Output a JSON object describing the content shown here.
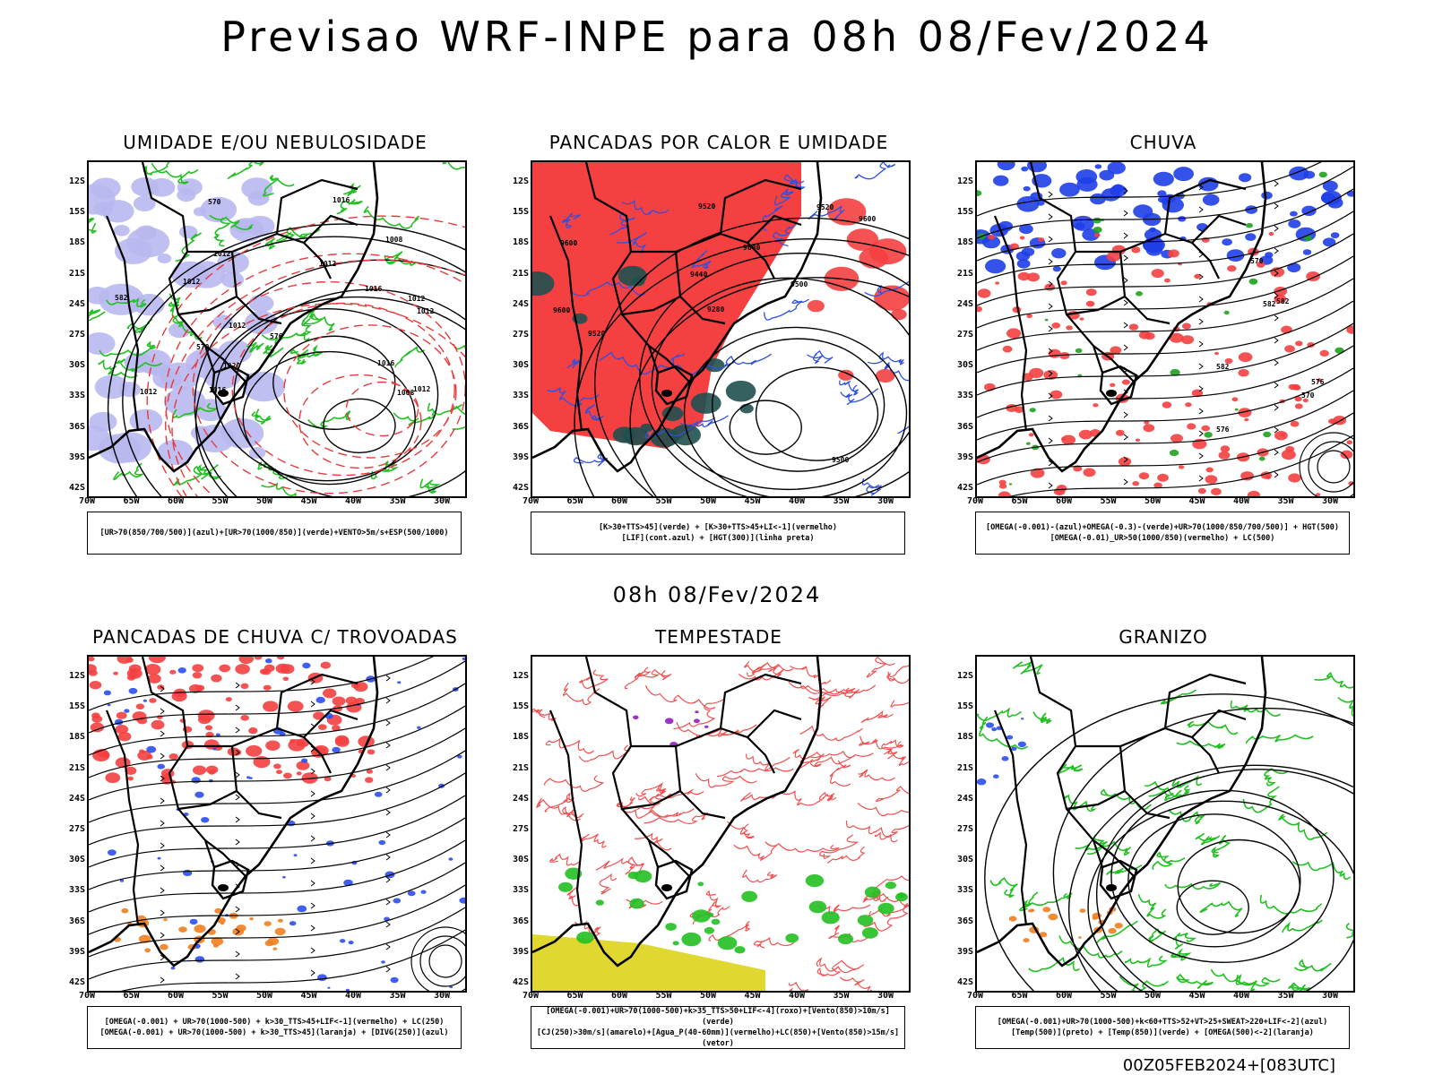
{
  "main_title": "Previsao WRF-INPE  para 08h 08/Fev/2024",
  "mid_title": "08h 08/Fev/2024",
  "footer": "00Z05FEB2024+[083UTC]",
  "axes": {
    "lat": [
      "12S",
      "15S",
      "18S",
      "21S",
      "24S",
      "27S",
      "30S",
      "33S",
      "36S",
      "39S",
      "42S"
    ],
    "lon": [
      "70W",
      "65W",
      "60W",
      "55W",
      "50W",
      "45W",
      "40W",
      "35W",
      "30W"
    ]
  },
  "panels": [
    {
      "title": "UMIDADE E/OU NEBULOSIDADE",
      "legend": [
        "[UR>70(850/700/500)](azul)+[UR>70(1000/850)](verde)+VENTO>5m/s+ESP(500/1000)"
      ],
      "labels": [
        "1012",
        "1012",
        "1012",
        "1012",
        "1012",
        "1012",
        "1020",
        "1016",
        "1008",
        "1008",
        "1012",
        "1016",
        "1016",
        "1016",
        "1012",
        "576",
        "570",
        "582",
        "570"
      ],
      "colors": {
        "fill": "#b8b8f0",
        "contour": "#22c022",
        "dashed": "#e83a3a"
      }
    },
    {
      "title": "PANCADAS POR CALOR E UMIDADE",
      "legend": [
        "[K>30+TTS>45](verde) + [K>30+TTS>45+LI<-1](vermelho)",
        "[LIF](cont.azul) + [HGT(300)](linha preta)"
      ],
      "labels": [
        "9600",
        "9520",
        "9500",
        "9600",
        "9600",
        "9500",
        "9520",
        "9600",
        "9440",
        "9520",
        "9280"
      ],
      "colors": {
        "fill": "#f44040",
        "fill2": "#1f5050",
        "contour": "#3050e0"
      }
    },
    {
      "title": "CHUVA",
      "legend": [
        "[OMEGA(-0.001)-(azul)+OMEGA(-0.3)-(verde)+UR>70(1000/850/700/500)] + HGT(500)",
        "[OMEGA(-0.01)_UR>50(1000/850)(vermelho) + LC(500)"
      ],
      "labels": [
        "582",
        "576",
        "582",
        "570",
        "576",
        "570",
        "582"
      ],
      "colors": {
        "fill": "#f44040",
        "fill2": "#1e3ee8",
        "fill3": "#1fa21f"
      }
    },
    {
      "title": "PANCADAS DE CHUVA C/ TROVOADAS",
      "legend": [
        "[OMEGA(-0.001) + UR>70(1000-500) + k>30_TTS>45+LIF<-1](vermelho) + LC(250)",
        "[OMEGA(-0.001) + UR>70(1000-500) + k>30_TTS>45](laranja) + [DIVG(250)](azul)"
      ],
      "labels": [],
      "colors": {
        "fill": "#f44040",
        "fill2": "#2a4ef0",
        "fill3": "#f08020"
      }
    },
    {
      "title": "TEMPESTADE",
      "legend": [
        "[OMEGA(-0.001)+UR>70(1000-500)+k>35_TTS>50+LIF<-4](roxo)+[Vento(850)>10m/s](verde)",
        "[CJ(250)>30m/s](amarelo)+[Agua_P(40-60mm)](vermelho)+LC(850)+[Vento(850)>15m/s](vetor)"
      ],
      "labels": [],
      "colors": {
        "contour": "#f05050",
        "fill": "#e0d830",
        "fill2": "#22c022",
        "fill3": "#9020c0"
      }
    },
    {
      "title": "GRANIZO",
      "legend": [
        "[OMEGA(-0.001)+UR>70(1000-500)+k<60+TTS>52+VT>25+SWEAT>220+LIF<-2](azul)",
        "[Temp(500)](preto) + [Temp(850)](verde) + [OMEGA(500)<-2](laranja)"
      ],
      "labels": [],
      "colors": {
        "contour": "#22c022",
        "fill": "#f08020",
        "fill2": "#2a4ef0"
      }
    }
  ]
}
